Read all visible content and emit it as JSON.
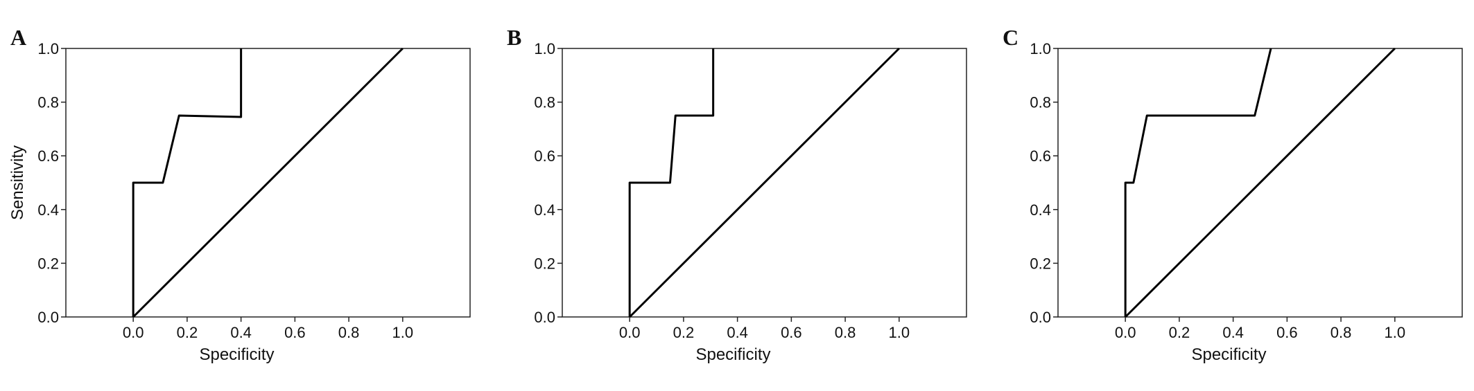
{
  "chart_data": [
    {
      "type": "line",
      "panel": "A",
      "xlabel": "Specificity",
      "ylabel": "Sensitivity",
      "xlim": [
        -0.25,
        1.25
      ],
      "ylim": [
        0,
        1
      ],
      "xticks": [
        {
          "value": 0,
          "label": "0.0"
        },
        {
          "value": 0.2,
          "label": "0.2"
        },
        {
          "value": 0.4,
          "label": "0.4"
        },
        {
          "value": 0.6,
          "label": "0.6"
        },
        {
          "value": 0.8,
          "label": "0.8"
        },
        {
          "value": 1,
          "label": "1.0"
        }
      ],
      "yticks": [
        {
          "value": 0,
          "label": "0.0"
        },
        {
          "value": 0.2,
          "label": "0.2"
        },
        {
          "value": 0.4,
          "label": "0.4"
        },
        {
          "value": 0.6,
          "label": "0.6"
        },
        {
          "value": 0.8,
          "label": "0.8"
        },
        {
          "value": 1,
          "label": "1.0"
        }
      ],
      "series": [
        {
          "color": "#000000",
          "x": [
            0,
            0,
            0.11,
            0.17,
            0.4,
            0.4
          ],
          "values": [
            0,
            0.5,
            0.5,
            0.75,
            0.745,
            1
          ]
        },
        {
          "color": "#000000",
          "x": [
            0,
            1
          ],
          "values": [
            0,
            1
          ]
        }
      ]
    },
    {
      "type": "line",
      "panel": "B",
      "xlabel": "Specificity",
      "xlim": [
        -0.25,
        1.25
      ],
      "ylim": [
        0,
        1
      ],
      "xticks": [
        {
          "value": 0,
          "label": "0.0"
        },
        {
          "value": 0.2,
          "label": "0.2"
        },
        {
          "value": 0.4,
          "label": "0.4"
        },
        {
          "value": 0.6,
          "label": "0.6"
        },
        {
          "value": 0.8,
          "label": "0.8"
        },
        {
          "value": 1,
          "label": "1.0"
        }
      ],
      "yticks": [
        {
          "value": 0,
          "label": "0.0"
        },
        {
          "value": 0.2,
          "label": "0.2"
        },
        {
          "value": 0.4,
          "label": "0.4"
        },
        {
          "value": 0.6,
          "label": "0.6"
        },
        {
          "value": 0.8,
          "label": "0.8"
        },
        {
          "value": 1,
          "label": "1.0"
        }
      ],
      "series": [
        {
          "color": "#000000",
          "x": [
            0,
            0,
            0.15,
            0.17,
            0.31,
            0.31
          ],
          "values": [
            0,
            0.5,
            0.5,
            0.75,
            0.75,
            1
          ]
        },
        {
          "color": "#000000",
          "x": [
            0,
            1
          ],
          "values": [
            0,
            1
          ]
        }
      ]
    },
    {
      "type": "line",
      "panel": "C",
      "xlabel": "Specificity",
      "xlim": [
        -0.25,
        1.25
      ],
      "ylim": [
        0,
        1
      ],
      "xticks": [
        {
          "value": 0,
          "label": "0.0"
        },
        {
          "value": 0.2,
          "label": "0.2"
        },
        {
          "value": 0.4,
          "label": "0.4"
        },
        {
          "value": 0.6,
          "label": "0.6"
        },
        {
          "value": 0.8,
          "label": "0.8"
        },
        {
          "value": 1,
          "label": "1.0"
        }
      ],
      "yticks": [
        {
          "value": 0,
          "label": "0.0"
        },
        {
          "value": 0.2,
          "label": "0.2"
        },
        {
          "value": 0.4,
          "label": "0.4"
        },
        {
          "value": 0.6,
          "label": "0.6"
        },
        {
          "value": 0.8,
          "label": "0.8"
        },
        {
          "value": 1,
          "label": "1.0"
        }
      ],
      "series": [
        {
          "color": "#000000",
          "x": [
            0,
            0,
            0.03,
            0.08,
            0.48,
            0.54
          ],
          "values": [
            0,
            0.5,
            0.5,
            0.75,
            0.75,
            1
          ]
        },
        {
          "color": "#000000",
          "x": [
            0,
            1
          ],
          "values": [
            0,
            1
          ]
        }
      ]
    }
  ]
}
